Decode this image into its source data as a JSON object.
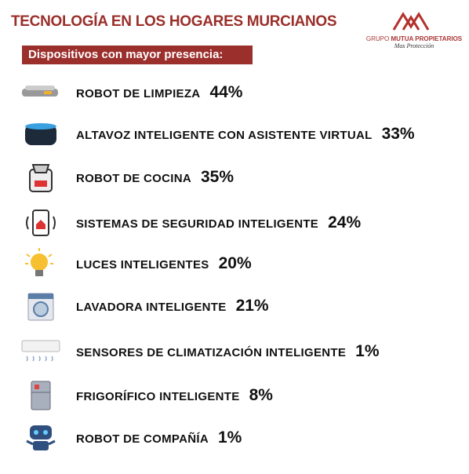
{
  "header": {
    "title": "TECNOLOGÍA EN LOS HOGARES MURCIANOS",
    "subtitle": "Dispositivos con mayor presencia:"
  },
  "logo": {
    "brand_prefix": "GRUPO",
    "brand_name": "MUTUA PROPIETARIOS",
    "tagline": "Mas Protección"
  },
  "items": [
    {
      "label": "ROBOT DE LIMPIEZA",
      "value": "44%"
    },
    {
      "label": "ALTAVOZ INTELIGENTE CON ASISTENTE VIRTUAL",
      "value": "33%"
    },
    {
      "label": "ROBOT DE COCINA",
      "value": "35%"
    },
    {
      "label": "SISTEMAS DE SEGURIDAD INTELIGENTE",
      "value": "24%"
    },
    {
      "label": "LUCES INTELIGENTES",
      "value": "20%"
    },
    {
      "label": "LAVADORA INTELIGENTE",
      "value": "21%"
    },
    {
      "label": "SENSORES DE CLIMATIZACIÓN INTELIGENTE",
      "value": "1%"
    },
    {
      "label": "FRIGORÍFICO INTELIGENTE",
      "value": "8%"
    },
    {
      "label": "ROBOT DE COMPAÑÍA",
      "value": "1%"
    }
  ]
}
